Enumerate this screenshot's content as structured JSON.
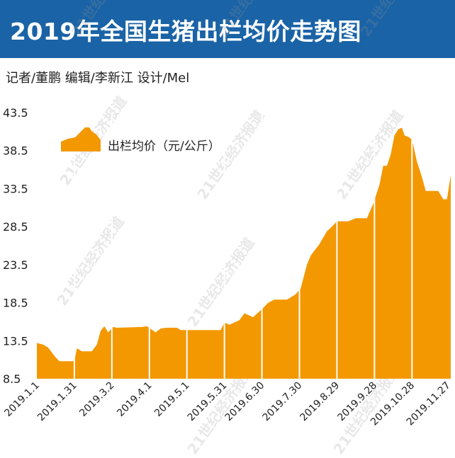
{
  "header": {
    "title": "2019年全国生猪出栏均价走势图",
    "credits": "记者/董鹏  编辑/李新江  设计/Mel"
  },
  "watermark": "21世纪经济报道",
  "colors": {
    "title_bar": "#1a63a6",
    "area_fill": "#f39800",
    "separator": "#ffffff"
  },
  "chart_data": {
    "type": "area",
    "legend": "出栏均价（元/公斤）",
    "legend_position": "top-left",
    "grid": false,
    "ylim": [
      8.5,
      43.5
    ],
    "y_ticks": [
      "43.5",
      "38.5",
      "33.5",
      "28.5",
      "23.5",
      "18.5",
      "13.5",
      "8.5"
    ],
    "x_tick_labels": [
      "2019.1.1",
      "2019.1.31",
      "2019.3.2",
      "2019.4.1",
      "2019.5.1",
      "2019.5.31",
      "2019.6.30",
      "2019.7.30",
      "2019.8.29",
      "2019.9.28",
      "2019.10.28",
      "2019.11.27"
    ],
    "x_range": [
      "2019-01-01",
      "2019-11-28"
    ],
    "points": [
      [
        "2019-01-01",
        13.2
      ],
      [
        "2019-01-06",
        13.0
      ],
      [
        "2019-01-10",
        12.6
      ],
      [
        "2019-01-16",
        11.3
      ],
      [
        "2019-01-19",
        10.8
      ],
      [
        "2019-01-31",
        10.8
      ],
      [
        "2019-02-02",
        12.5
      ],
      [
        "2019-02-06",
        12.1
      ],
      [
        "2019-02-14",
        12.1
      ],
      [
        "2019-02-18",
        13.0
      ],
      [
        "2019-02-21",
        14.8
      ],
      [
        "2019-02-24",
        15.4
      ],
      [
        "2019-02-27",
        14.6
      ],
      [
        "2019-03-03",
        15.3
      ],
      [
        "2019-03-06",
        15.2
      ],
      [
        "2019-03-26",
        15.3
      ],
      [
        "2019-03-30",
        15.4
      ],
      [
        "2019-04-06",
        14.6
      ],
      [
        "2019-04-10",
        15.1
      ],
      [
        "2019-04-14",
        15.2
      ],
      [
        "2019-04-23",
        15.2
      ],
      [
        "2019-04-26",
        14.9
      ],
      [
        "2019-05-28",
        14.9
      ],
      [
        "2019-05-31",
        15.9
      ],
      [
        "2019-06-04",
        15.6
      ],
      [
        "2019-06-12",
        16.2
      ],
      [
        "2019-06-16",
        17.1
      ],
      [
        "2019-06-23",
        16.6
      ],
      [
        "2019-07-01",
        17.8
      ],
      [
        "2019-07-05",
        18.5
      ],
      [
        "2019-07-10",
        18.9
      ],
      [
        "2019-07-20",
        18.9
      ],
      [
        "2019-07-27",
        19.6
      ],
      [
        "2019-07-31",
        20.4
      ],
      [
        "2019-08-05",
        23.5
      ],
      [
        "2019-08-08",
        24.7
      ],
      [
        "2019-08-15",
        26.2
      ],
      [
        "2019-08-21",
        27.9
      ],
      [
        "2019-08-25",
        28.5
      ],
      [
        "2019-08-29",
        29.2
      ],
      [
        "2019-09-07",
        29.2
      ],
      [
        "2019-09-13",
        29.6
      ],
      [
        "2019-09-22",
        29.6
      ],
      [
        "2019-09-27",
        31.5
      ],
      [
        "2019-10-02",
        34.0
      ],
      [
        "2019-10-05",
        36.5
      ],
      [
        "2019-10-08",
        36.5
      ],
      [
        "2019-10-11",
        38.0
      ],
      [
        "2019-10-14",
        40.5
      ],
      [
        "2019-10-17",
        41.3
      ],
      [
        "2019-10-20",
        41.5
      ],
      [
        "2019-10-22",
        40.5
      ],
      [
        "2019-10-25",
        40.3
      ],
      [
        "2019-10-28",
        40.0
      ],
      [
        "2019-11-01",
        37.0
      ],
      [
        "2019-11-05",
        35.0
      ],
      [
        "2019-11-08",
        33.2
      ],
      [
        "2019-11-18",
        33.2
      ],
      [
        "2019-11-22",
        32.1
      ],
      [
        "2019-11-25",
        32.1
      ],
      [
        "2019-11-28",
        35.3
      ]
    ]
  }
}
